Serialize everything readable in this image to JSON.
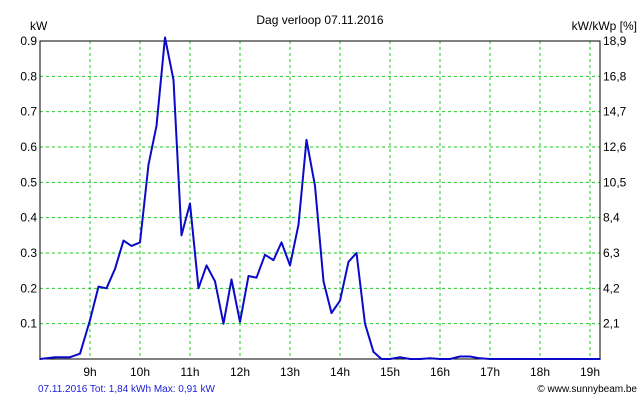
{
  "chart_data": {
    "type": "line",
    "title": "Dag  verloop 07.11.2016",
    "ylabel_left": "kW",
    "ylabel_right": "kW/kWp [%]",
    "ylim": [
      0,
      0.9
    ],
    "xlim": [
      8,
      19.2
    ],
    "grid": true,
    "y_ticks_left": [
      "0.1",
      "0.2",
      "0.3",
      "0.4",
      "0.5",
      "0.6",
      "0.7",
      "0.8",
      "0.9"
    ],
    "y_ticks_right": [
      "2,1",
      "4,2",
      "6,3",
      "8,4",
      "10,5",
      "12,6",
      "14,7",
      "16,8",
      "18,9"
    ],
    "x_ticks": [
      "9h",
      "10h",
      "11h",
      "12h",
      "13h",
      "14h",
      "15h",
      "16h",
      "17h",
      "18h",
      "19h"
    ],
    "series": [
      {
        "color": "#0a0ac8",
        "x": [
          8.0,
          8.3,
          8.6,
          8.8,
          9.0,
          9.17,
          9.33,
          9.5,
          9.67,
          9.83,
          10.0,
          10.17,
          10.33,
          10.5,
          10.67,
          10.83,
          11.0,
          11.17,
          11.33,
          11.5,
          11.67,
          11.83,
          12.0,
          12.17,
          12.33,
          12.5,
          12.67,
          12.83,
          13.0,
          13.17,
          13.33,
          13.5,
          13.67,
          13.83,
          14.0,
          14.17,
          14.33,
          14.5,
          14.67,
          14.83,
          15.0,
          15.2,
          15.4,
          15.6,
          15.8,
          16.0,
          16.2,
          16.4,
          16.6,
          16.8,
          17.0,
          17.5,
          18.0,
          18.5,
          19.0,
          19.2
        ],
        "y": [
          0.0,
          0.005,
          0.005,
          0.015,
          0.11,
          0.205,
          0.2,
          0.255,
          0.335,
          0.32,
          0.33,
          0.55,
          0.66,
          0.91,
          0.79,
          0.35,
          0.44,
          0.2,
          0.265,
          0.22,
          0.1,
          0.225,
          0.105,
          0.235,
          0.23,
          0.295,
          0.28,
          0.33,
          0.265,
          0.38,
          0.62,
          0.49,
          0.22,
          0.13,
          0.165,
          0.275,
          0.3,
          0.1,
          0.02,
          0.0,
          0.0,
          0.005,
          0.0,
          0.0,
          0.002,
          0.0,
          0.0,
          0.007,
          0.007,
          0.002,
          0.0,
          0.0,
          0.0,
          0.0,
          0.0,
          0.0
        ]
      }
    ]
  },
  "footer": {
    "left": "07.11.2016 Tot: 1,84 kWh Max: 0,91 kW",
    "right": "© www.sunnybeam.be"
  }
}
